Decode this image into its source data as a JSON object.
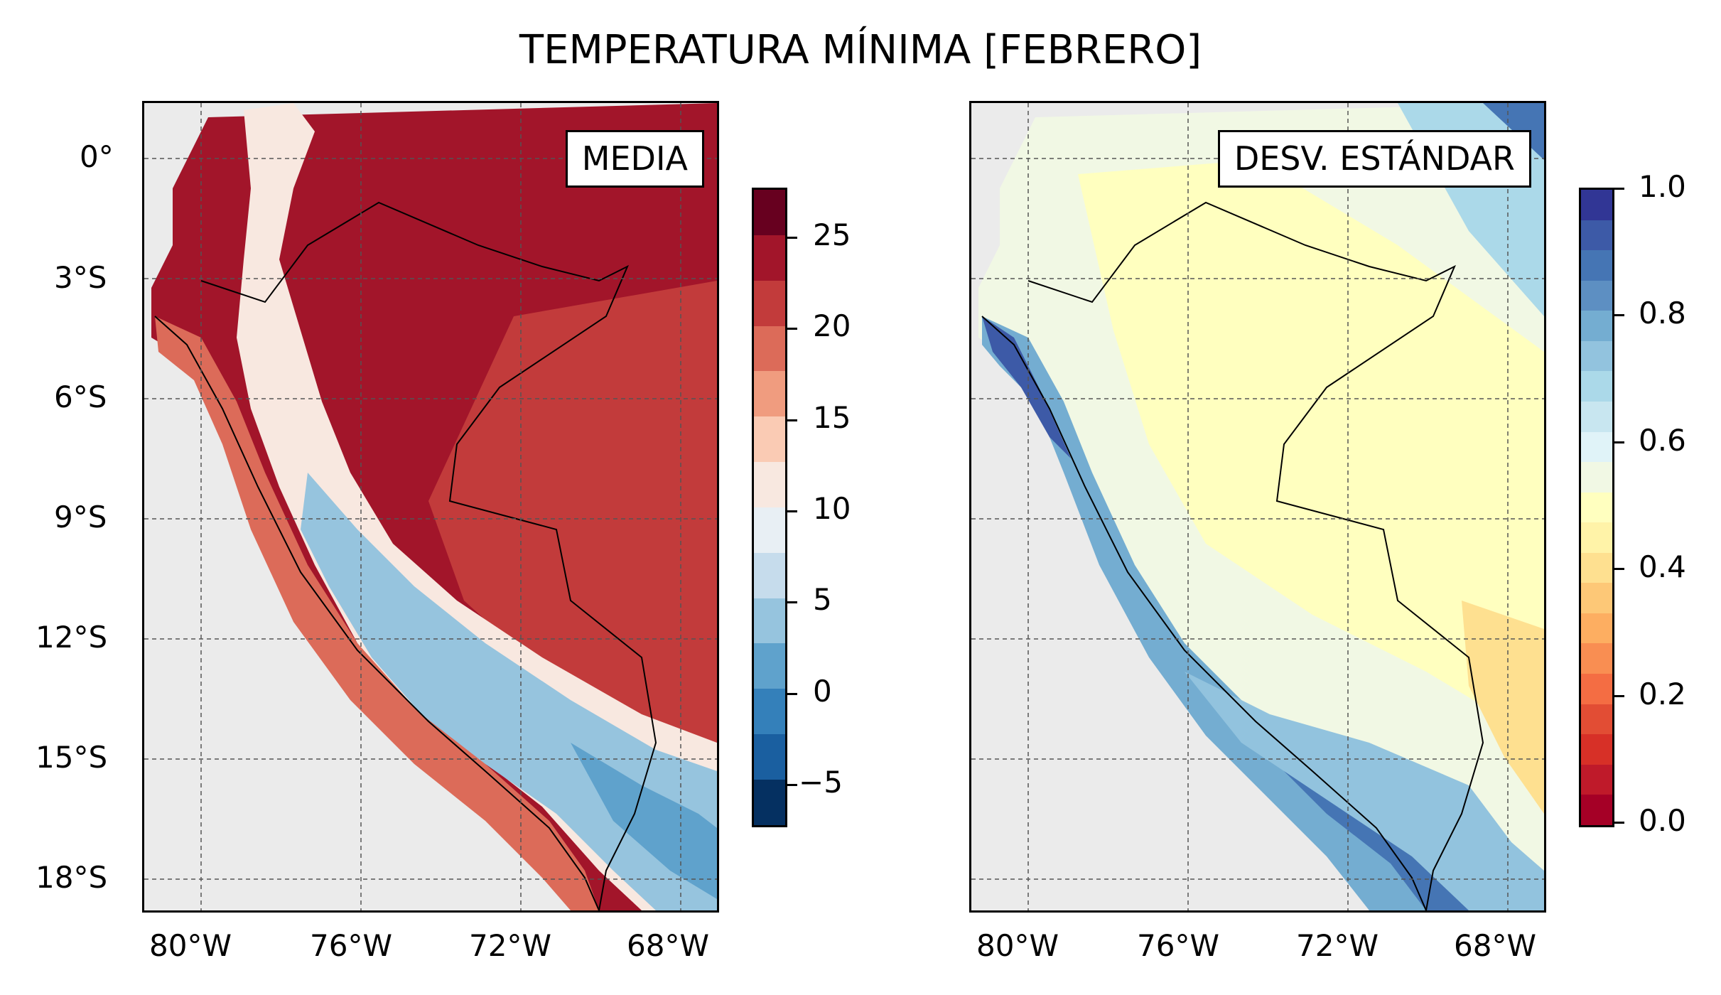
{
  "title": "TEMPERATURA MÍNIMA [FEBRERO]",
  "panels": {
    "left": {
      "label": "MEDIA"
    },
    "right": {
      "label": "DESV. ESTÁNDAR"
    }
  },
  "axes": {
    "lat_ticks": [
      "0°",
      "3°S",
      "6°S",
      "9°S",
      "12°S",
      "15°S",
      "18°S"
    ],
    "lon_ticks": [
      "80°W",
      "76°W",
      "72°W",
      "68°W"
    ]
  },
  "colorbars": {
    "media": {
      "ticks": [
        "25",
        "20",
        "15",
        "10",
        "5",
        "0",
        "−5"
      ],
      "colors": [
        "#67001f",
        "#a2152a",
        "#c23b3b",
        "#dc6b59",
        "#f09c7f",
        "#facbb4",
        "#f8e8e0",
        "#e8eff4",
        "#c6dcec",
        "#96c4de",
        "#5fa2cc",
        "#3480ba",
        "#1a5fa0",
        "#053061"
      ]
    },
    "desv": {
      "ticks": [
        "1.0",
        "0.8",
        "0.6",
        "0.4",
        "0.2",
        "0.0"
      ],
      "colors": [
        "#313695",
        "#3d5aa7",
        "#4575b4",
        "#5d8fc2",
        "#74add1",
        "#92c3de",
        "#abd9e9",
        "#c8e6f0",
        "#e0f3f8",
        "#f1f8e4",
        "#ffffbf",
        "#fff3a8",
        "#fee090",
        "#fdc877",
        "#fdae61",
        "#f98e52",
        "#f46d43",
        "#e24d34",
        "#d73027",
        "#bf1a2a",
        "#a50026"
      ]
    }
  }
}
